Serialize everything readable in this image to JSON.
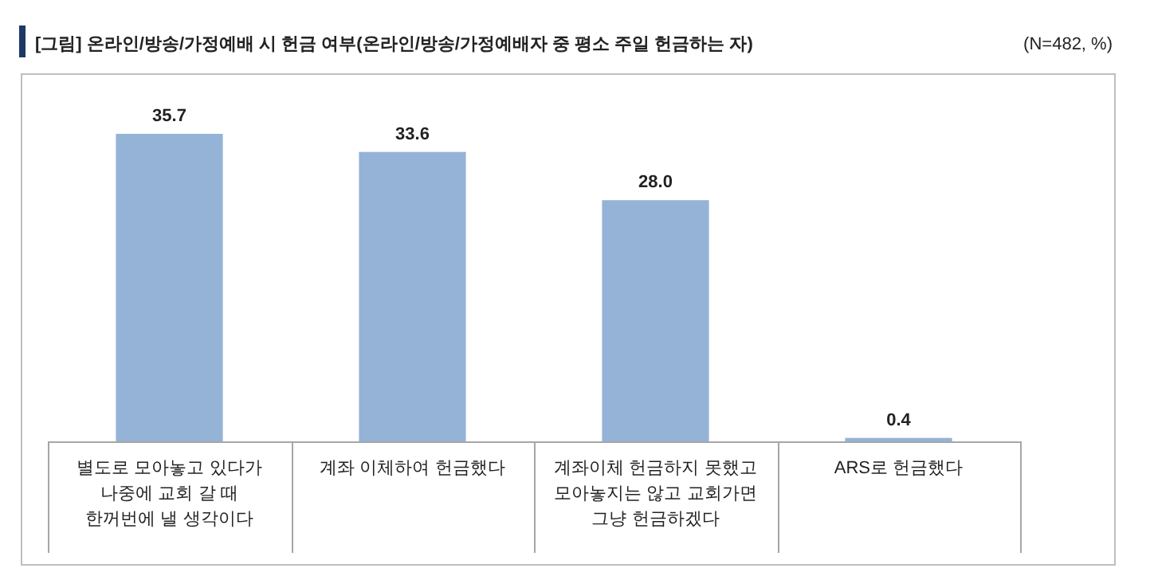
{
  "chart_data": {
    "type": "bar",
    "title": "[그림] 온라인/방송/가정예배 시 헌금 여부(온라인/방송/가정예배자 중 평소 주일 헌금하는 자)",
    "subtitle": "(N=482, %)",
    "categories": [
      "별도로 모아놓고 있다가 나중에 교회 갈 때 한꺼번에 낼 생각이다",
      "계좌 이체하여 헌금했다",
      "계좌이체 헌금하지 못했고 모아놓지는 않고 교회가면 그냥 헌금하겠다",
      "ARS로 헌금했다"
    ],
    "values": [
      35.7,
      33.6,
      28.0,
      0.4
    ],
    "value_labels": [
      "35.7",
      "33.6",
      "28.0",
      "0.4"
    ],
    "color": "#95b3d7"
  }
}
